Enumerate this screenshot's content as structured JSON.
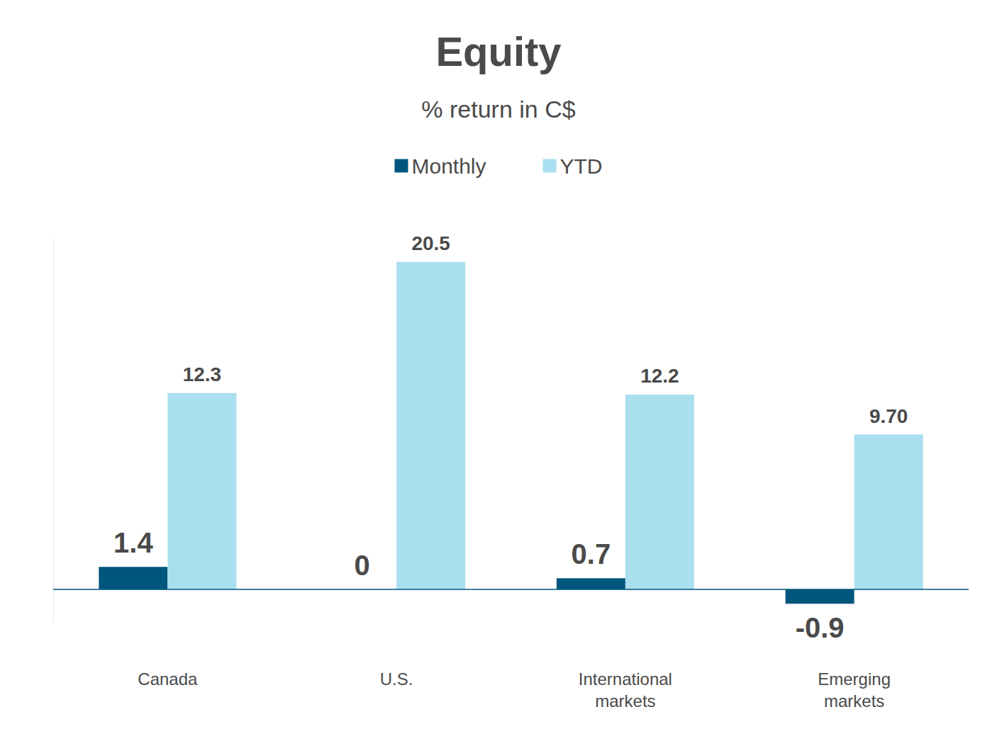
{
  "chart_data": {
    "type": "bar",
    "title": "Equity",
    "subtitle": "% return in C$",
    "categories": [
      "Canada",
      "U.S.",
      "International\nmarkets",
      "Emerging\nmarkets"
    ],
    "series": [
      {
        "name": "Monthly",
        "color": "#00567d",
        "values": [
          1.4,
          0,
          0.7,
          -0.9
        ]
      },
      {
        "name": "YTD",
        "color": "#aadff0",
        "values": [
          12.3,
          20.5,
          12.2,
          9.7
        ],
        "value_labels": [
          "12.3",
          "20.5",
          "12.2",
          "9.70"
        ]
      }
    ],
    "ylim": [
      -2,
      22
    ],
    "tick_labels": "x",
    "data_labels": true,
    "legend": "top"
  }
}
